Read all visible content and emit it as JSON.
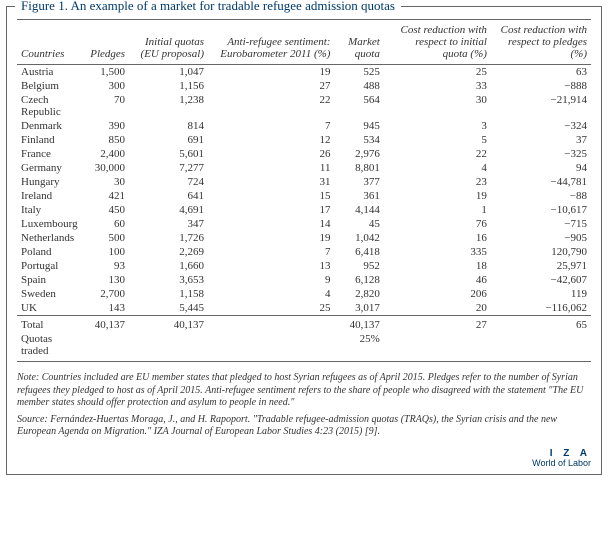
{
  "figure": {
    "title": "Figure 1. An example of a market for tradable refugee admission quotas",
    "columns": [
      "Countries",
      "Pledges",
      "Initial quotas (EU proposal)",
      "Anti-refugee sentiment: Eurobarometer 2011 (%)",
      "Market quota",
      "Cost reduction with respect to initial quota (%)",
      "Cost reduction with respect to pledges (%)"
    ],
    "col_align": [
      "left",
      "right",
      "right",
      "right",
      "right",
      "right",
      "right"
    ],
    "rows": [
      [
        "Austria",
        "1,500",
        "1,047",
        "19",
        "525",
        "25",
        "63"
      ],
      [
        "Belgium",
        "300",
        "1,156",
        "27",
        "488",
        "33",
        "−888"
      ],
      [
        "Czech Republic",
        "70",
        "1,238",
        "22",
        "564",
        "30",
        "−21,914"
      ],
      [
        "Denmark",
        "390",
        "814",
        "7",
        "945",
        "3",
        "−324"
      ],
      [
        "Finland",
        "850",
        "691",
        "12",
        "534",
        "5",
        "37"
      ],
      [
        "France",
        "2,400",
        "5,601",
        "26",
        "2,976",
        "22",
        "−325"
      ],
      [
        "Germany",
        "30,000",
        "7,277",
        "11",
        "8,801",
        "4",
        "94"
      ],
      [
        "Hungary",
        "30",
        "724",
        "31",
        "377",
        "23",
        "−44,781"
      ],
      [
        "Ireland",
        "421",
        "641",
        "15",
        "361",
        "19",
        "−88"
      ],
      [
        "Italy",
        "450",
        "4,691",
        "17",
        "4,144",
        "1",
        "−10,617"
      ],
      [
        "Luxembourg",
        "60",
        "347",
        "14",
        "45",
        "76",
        "−715"
      ],
      [
        "Netherlands",
        "500",
        "1,726",
        "19",
        "1,042",
        "16",
        "−905"
      ],
      [
        "Poland",
        "100",
        "2,269",
        "7",
        "6,418",
        "335",
        "120,790"
      ],
      [
        "Portugal",
        "93",
        "1,660",
        "13",
        "952",
        "18",
        "25,971"
      ],
      [
        "Spain",
        "130",
        "3,653",
        "9",
        "6,128",
        "46",
        "−42,607"
      ],
      [
        "Sweden",
        "2,700",
        "1,158",
        "4",
        "2,820",
        "206",
        "119"
      ],
      [
        "UK",
        "143",
        "5,445",
        "25",
        "3,017",
        "20",
        "−116,062"
      ]
    ],
    "totals": [
      [
        "Total",
        "40,137",
        "40,137",
        "",
        "40,137",
        "27",
        "65"
      ],
      [
        "Quotas traded",
        "",
        "",
        "",
        "25%",
        "",
        ""
      ]
    ],
    "note": "Note: Countries included are EU member states that pledged to host Syrian refugees as of April 2015. Pledges refer to the number of Syrian refugees they pledged to host as of April 2015. Anti-refugee sentiment refers to the share of people who disagreed with the statement \"The EU member states should offer protection and asylum to people in need.\"",
    "source": "Source: Fernández-Huertas Moraga, J., and H. Rapoport. \"Tradable refugee-admission quotas (TRAQs), the Syrian crisis and the new European Agenda on Migration.\" IZA Journal of European Labor Studies 4:23 (2015) [9].",
    "branding": {
      "top": "I Z A",
      "bottom": "World of Labor"
    },
    "style": {
      "border_color": "#666666",
      "title_color": "#003a6a",
      "text_color": "#333333",
      "bg": "#ffffff",
      "font_body_pt": 11,
      "font_note_pt": 10
    }
  }
}
